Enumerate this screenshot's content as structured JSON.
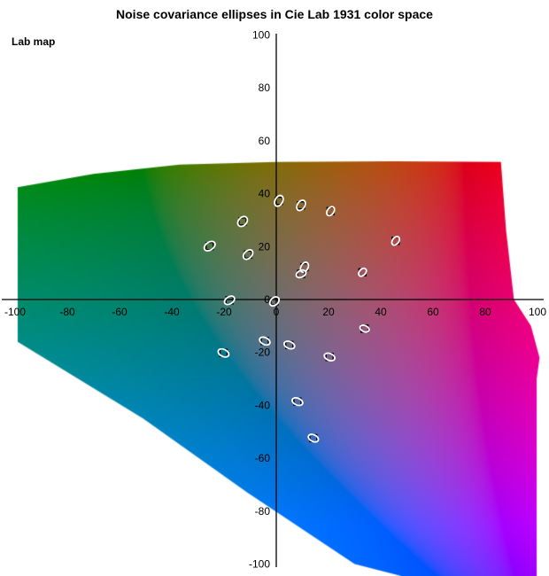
{
  "chart": {
    "title": "Noise covariance ellipses in Cie Lab 1931 color space",
    "corner_label": "Lab map"
  },
  "chart_data": {
    "type": "scatter",
    "title": "Noise covariance ellipses in Cie Lab 1931 color space",
    "xlabel": "",
    "ylabel": "",
    "xlim": [
      -100,
      100
    ],
    "ylim": [
      -100,
      100
    ],
    "x_ticks": [
      -100,
      -80,
      -60,
      -40,
      -20,
      0,
      20,
      40,
      60,
      80,
      100
    ],
    "y_ticks": [
      100,
      80,
      60,
      40,
      20,
      0,
      -20,
      -40,
      -60,
      -80,
      -100
    ],
    "grid": false,
    "legend": "none",
    "axis_color": "#000000",
    "tick_label_color": "#000000",
    "background_color": "#ffffff",
    "colormap": {
      "description": "CIELAB a-b plane rendered at fixed lightness, clipped to sRGB gamut",
      "lab_lightness": 46,
      "gamut_polygon_ab": [
        [
          -99,
          42.5
        ],
        [
          -70,
          47.5
        ],
        [
          -37,
          51
        ],
        [
          0,
          52
        ],
        [
          45,
          52.3
        ],
        [
          86,
          52
        ],
        [
          88,
          26
        ],
        [
          91,
          0
        ],
        [
          97.5,
          -10
        ],
        [
          100.8,
          -22
        ],
        [
          99.7,
          -30
        ],
        [
          99.7,
          -104.8
        ],
        [
          49,
          -104.8
        ],
        [
          30,
          -100
        ],
        [
          -11,
          -73
        ],
        [
          -51,
          -45
        ],
        [
          -99,
          -16
        ]
      ]
    },
    "ellipse_style": {
      "stroke": "#ffffff",
      "marker_square_color": "#000000",
      "marker_square_size": 8
    },
    "ellipses": [
      {
        "a": 1.0,
        "b": 37.3,
        "rot": -62,
        "major": 6.5,
        "minor": 4.3
      },
      {
        "a": 9.5,
        "b": 35.6,
        "rot": -58,
        "major": 6.3,
        "minor": 4.2
      },
      {
        "a": 20.8,
        "b": 33.4,
        "rot": -55,
        "major": 5.6,
        "minor": 3.7
      },
      {
        "a": -12.9,
        "b": 29.5,
        "rot": -48,
        "major": 6.3,
        "minor": 4.6
      },
      {
        "a": -25.5,
        "b": 20.2,
        "rot": -35,
        "major": 6.8,
        "minor": 4.4
      },
      {
        "a": -10.8,
        "b": 17.0,
        "rot": -45,
        "major": 6.3,
        "minor": 4.2
      },
      {
        "a": 45.7,
        "b": 22.2,
        "rot": -52,
        "major": 5.4,
        "minor": 3.6
      },
      {
        "a": 10.8,
        "b": 12.2,
        "rot": -62,
        "major": 6.0,
        "minor": 4.0
      },
      {
        "a": 9.5,
        "b": 9.7,
        "rot": -25,
        "major": 5.8,
        "minor": 3.8
      },
      {
        "a": 33.0,
        "b": 10.3,
        "rot": -47,
        "major": 5.2,
        "minor": 3.5
      },
      {
        "a": -17.9,
        "b": -0.3,
        "rot": -32,
        "major": 6.2,
        "minor": 4.0
      },
      {
        "a": -0.7,
        "b": -0.7,
        "rot": -42,
        "major": 6.0,
        "minor": 4.2
      },
      {
        "a": 33.8,
        "b": -11.0,
        "rot": 24,
        "major": 5.4,
        "minor": 3.5
      },
      {
        "a": -4.4,
        "b": -15.7,
        "rot": 25,
        "major": 6.2,
        "minor": 3.9
      },
      {
        "a": 5.0,
        "b": -17.2,
        "rot": 22,
        "major": 6.2,
        "minor": 3.9
      },
      {
        "a": -20.2,
        "b": -20.2,
        "rot": 25,
        "major": 6.4,
        "minor": 4.0
      },
      {
        "a": 20.4,
        "b": -21.7,
        "rot": 22,
        "major": 6.2,
        "minor": 3.9
      },
      {
        "a": 8.1,
        "b": -38.6,
        "rot": 22,
        "major": 6.2,
        "minor": 3.9
      },
      {
        "a": 14.2,
        "b": -52.4,
        "rot": 25,
        "major": 6.0,
        "minor": 3.8
      }
    ]
  }
}
